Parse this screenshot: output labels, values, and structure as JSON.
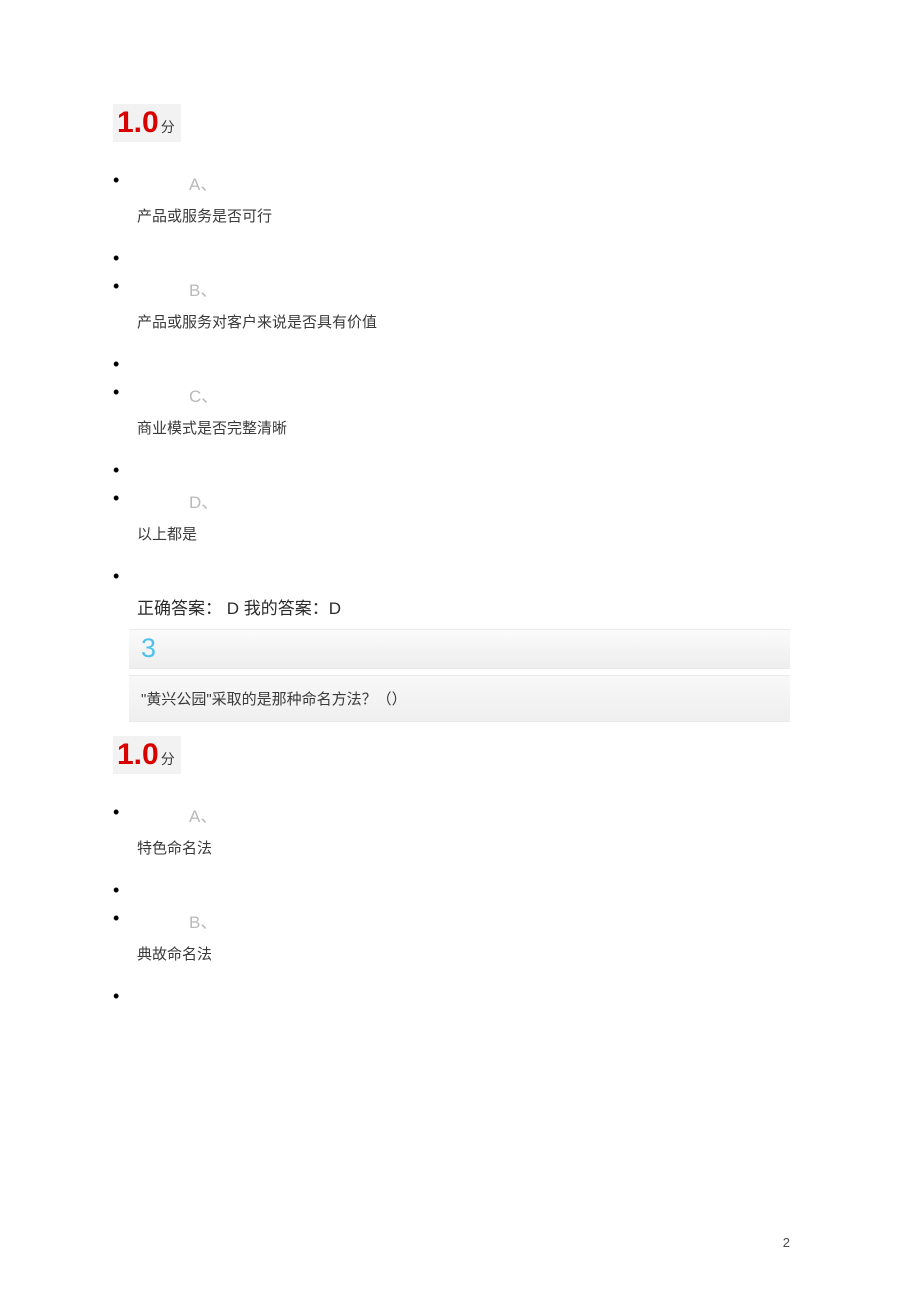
{
  "q2": {
    "score_num": "1.0",
    "score_unit": "分",
    "options": [
      {
        "letter": "A、",
        "text": "产品或服务是否可行"
      },
      {
        "letter": "B、",
        "text": "产品或服务对客户来说是否具有价值"
      },
      {
        "letter": "C、",
        "text": "商业模式是否完整清晰"
      },
      {
        "letter": "D、",
        "text": "以上都是"
      }
    ],
    "answer_line": "正确答案： D 我的答案：D"
  },
  "q3": {
    "number": "3",
    "question": "\"黄兴公园\"采取的是那种命名方法？（）",
    "score_num": "1.0",
    "score_unit": "分",
    "options": [
      {
        "letter": "A、",
        "text": "特色命名法"
      },
      {
        "letter": "B、",
        "text": "典故命名法"
      }
    ]
  },
  "page_number": "2",
  "colors": {
    "score_red": "#d90000",
    "letter_gray": "#b9b9b9",
    "qnum_blue": "#4fc1ea",
    "bar_bg_top": "#fbfbfb",
    "bar_bg_bottom": "#eeeeef",
    "body_text": "#3a3a3a"
  },
  "typography": {
    "score_num_size": 30,
    "score_unit_size": 14,
    "letter_size": 17,
    "option_text_size": 15,
    "answer_size": 17,
    "qnum_size": 27,
    "qtext_size": 15
  }
}
